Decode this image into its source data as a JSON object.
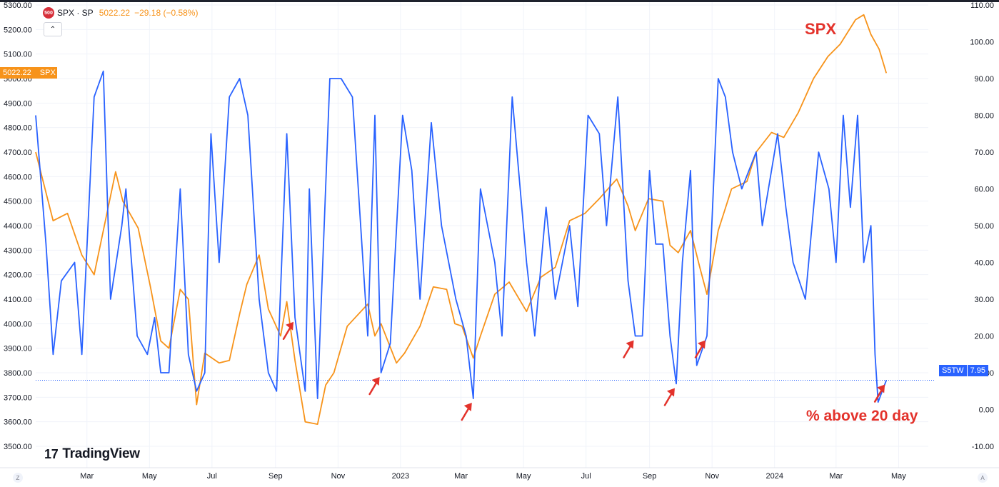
{
  "legend": {
    "logo_text": "500",
    "symbol": "SPX · SP",
    "price": "5022.22",
    "change": "−29.18 (−0.58%)"
  },
  "price_tag": {
    "value": "5022.22",
    "symbol": "SPX"
  },
  "s5tw_tag": {
    "symbol": "S5TW",
    "value": "7.95"
  },
  "annotations": {
    "spx": "SPX",
    "pct": "% above 20 day"
  },
  "branding": {
    "name": "TradingView",
    "mark": "17"
  },
  "corner": {
    "left": "Z",
    "right": "A"
  },
  "colors": {
    "spx": "#f7931a",
    "s5tw": "#2962ff",
    "annotation": "#e3322b",
    "arrow": "#e3322b"
  },
  "chart_data": {
    "type": "line",
    "left_axis": {
      "ylim": [
        3500,
        5300
      ],
      "ticks": [
        "5300.00",
        "5200.00",
        "5100.00",
        "5000.00",
        "4900.00",
        "4800.00",
        "4700.00",
        "4600.00",
        "4500.00",
        "4400.00",
        "4300.00",
        "4200.00",
        "4100.00",
        "4000.00",
        "3900.00",
        "3800.00",
        "3700.00",
        "3600.00",
        "3500.00"
      ]
    },
    "right_axis": {
      "ylim": [
        -10,
        110
      ],
      "ticks": [
        "110.00",
        "100.00",
        "90.00",
        "80.00",
        "70.00",
        "60.00",
        "50.00",
        "40.00",
        "30.00",
        "20.00",
        "10.00",
        "0.00",
        "-10.00"
      ]
    },
    "x_axis": {
      "range": [
        "2022-01-10",
        "2024-05-30"
      ],
      "ticks": [
        {
          "label": "Mar",
          "date": "2022-03-01"
        },
        {
          "label": "May",
          "date": "2022-05-01"
        },
        {
          "label": "Jul",
          "date": "2022-07-01"
        },
        {
          "label": "Sep",
          "date": "2022-09-01"
        },
        {
          "label": "Nov",
          "date": "2022-11-01"
        },
        {
          "label": "2023",
          "date": "2023-01-01"
        },
        {
          "label": "Mar",
          "date": "2023-03-01"
        },
        {
          "label": "May",
          "date": "2023-05-01"
        },
        {
          "label": "Jul",
          "date": "2023-07-01"
        },
        {
          "label": "Sep",
          "date": "2023-09-01"
        },
        {
          "label": "Nov",
          "date": "2023-11-01"
        },
        {
          "label": "2024",
          "date": "2024-01-01"
        },
        {
          "label": "Mar",
          "date": "2024-03-01"
        },
        {
          "label": "May",
          "date": "2024-05-01"
        }
      ]
    },
    "grid": true,
    "series": [
      {
        "name": "SPX",
        "axis": "left",
        "x": [
          "2022-01-10",
          "2022-01-27",
          "2022-02-10",
          "2022-02-24",
          "2022-03-08",
          "2022-03-29",
          "2022-04-05",
          "2022-04-20",
          "2022-05-02",
          "2022-05-12",
          "2022-05-20",
          "2022-05-31",
          "2022-06-08",
          "2022-06-16",
          "2022-06-24",
          "2022-07-08",
          "2022-07-18",
          "2022-07-28",
          "2022-08-04",
          "2022-08-16",
          "2022-08-25",
          "2022-09-06",
          "2022-09-12",
          "2022-09-20",
          "2022-09-30",
          "2022-10-12",
          "2022-10-20",
          "2022-10-28",
          "2022-11-10",
          "2022-11-30",
          "2022-12-07",
          "2022-12-13",
          "2022-12-28",
          "2023-01-05",
          "2023-01-20",
          "2023-02-02",
          "2023-02-15",
          "2023-02-23",
          "2023-03-02",
          "2023-03-13",
          "2023-03-20",
          "2023-04-03",
          "2023-04-17",
          "2023-05-04",
          "2023-05-18",
          "2023-06-01",
          "2023-06-15",
          "2023-06-30",
          "2023-07-14",
          "2023-07-31",
          "2023-08-11",
          "2023-08-18",
          "2023-08-31",
          "2023-09-14",
          "2023-09-21",
          "2023-09-29",
          "2023-10-11",
          "2023-10-20",
          "2023-10-27",
          "2023-11-07",
          "2023-11-20",
          "2023-12-05",
          "2023-12-14",
          "2023-12-29",
          "2024-01-10",
          "2024-01-24",
          "2024-02-08",
          "2024-02-22",
          "2024-03-05",
          "2024-03-20",
          "2024-03-28",
          "2024-04-04",
          "2024-04-12",
          "2024-04-19"
        ],
        "values": [
          4700,
          4420,
          4450,
          4280,
          4200,
          4620,
          4500,
          4390,
          4150,
          3930,
          3900,
          4140,
          4100,
          3670,
          3880,
          3840,
          3850,
          4040,
          4160,
          4280,
          4060,
          3950,
          4090,
          3850,
          3600,
          3590,
          3750,
          3800,
          3990,
          4080,
          3950,
          4000,
          3840,
          3880,
          3990,
          4150,
          4140,
          4000,
          3990,
          3860,
          3950,
          4120,
          4170,
          4050,
          4190,
          4230,
          4420,
          4450,
          4510,
          4590,
          4480,
          4380,
          4510,
          4500,
          4320,
          4290,
          4380,
          4230,
          4120,
          4380,
          4550,
          4580,
          4700,
          4780,
          4760,
          4860,
          5000,
          5090,
          5140,
          5240,
          5260,
          5180,
          5120,
          5022.22
        ]
      },
      {
        "name": "S5TW",
        "axis": "right",
        "x": [
          "2022-01-10",
          "2022-01-20",
          "2022-01-27",
          "2022-02-04",
          "2022-02-17",
          "2022-02-24",
          "2022-03-08",
          "2022-03-17",
          "2022-03-24",
          "2022-04-04",
          "2022-04-08",
          "2022-04-19",
          "2022-04-29",
          "2022-05-06",
          "2022-05-12",
          "2022-05-20",
          "2022-05-31",
          "2022-06-08",
          "2022-06-16",
          "2022-06-24",
          "2022-06-30",
          "2022-07-08",
          "2022-07-18",
          "2022-07-28",
          "2022-08-05",
          "2022-08-16",
          "2022-08-25",
          "2022-09-02",
          "2022-09-12",
          "2022-09-20",
          "2022-09-30",
          "2022-10-04",
          "2022-10-12",
          "2022-10-24",
          "2022-11-04",
          "2022-11-15",
          "2022-11-30",
          "2022-12-07",
          "2022-12-13",
          "2022-12-22",
          "2023-01-03",
          "2023-01-12",
          "2023-01-20",
          "2023-01-31",
          "2023-02-10",
          "2023-02-24",
          "2023-03-06",
          "2023-03-13",
          "2023-03-20",
          "2023-04-03",
          "2023-04-10",
          "2023-04-20",
          "2023-05-04",
          "2023-05-12",
          "2023-05-23",
          "2023-06-01",
          "2023-06-15",
          "2023-06-23",
          "2023-07-03",
          "2023-07-14",
          "2023-07-21",
          "2023-08-01",
          "2023-08-11",
          "2023-08-18",
          "2023-08-25",
          "2023-09-01",
          "2023-09-07",
          "2023-09-14",
          "2023-09-21",
          "2023-09-27",
          "2023-10-03",
          "2023-10-11",
          "2023-10-17",
          "2023-10-27",
          "2023-11-07",
          "2023-11-14",
          "2023-11-21",
          "2023-11-30",
          "2023-12-14",
          "2023-12-20",
          "2024-01-04",
          "2024-01-12",
          "2024-01-19",
          "2024-01-31",
          "2024-02-13",
          "2024-02-23",
          "2024-03-01",
          "2024-03-08",
          "2024-03-15",
          "2024-03-22",
          "2024-03-28",
          "2024-04-04",
          "2024-04-08",
          "2024-04-11",
          "2024-04-19"
        ],
        "values": [
          80,
          45,
          15,
          35,
          40,
          15,
          85,
          92,
          30,
          50,
          60,
          20,
          15,
          25,
          10,
          10,
          60,
          15,
          5,
          10,
          75,
          40,
          85,
          90,
          80,
          30,
          10,
          5,
          75,
          25,
          5,
          60,
          3,
          90,
          90,
          85,
          20,
          80,
          10,
          18,
          80,
          65,
          30,
          78,
          50,
          30,
          20,
          3,
          60,
          40,
          20,
          85,
          40,
          20,
          55,
          30,
          50,
          28,
          80,
          75,
          50,
          85,
          35,
          20,
          20,
          65,
          45,
          45,
          20,
          7,
          40,
          65,
          12,
          20,
          90,
          85,
          70,
          60,
          70,
          50,
          75,
          55,
          40,
          30,
          70,
          60,
          40,
          80,
          55,
          80,
          40,
          50,
          15,
          2,
          7.95
        ]
      }
    ],
    "arrows_at": [
      {
        "x": "2022-09-20",
        "series": "S5TW"
      },
      {
        "x": "2022-12-13",
        "series": "S5TW"
      },
      {
        "x": "2023-03-13",
        "series": "S5TW"
      },
      {
        "x": "2023-08-18",
        "series": "S5TW"
      },
      {
        "x": "2023-09-27",
        "series": "S5TW"
      },
      {
        "x": "2023-10-27",
        "series": "S5TW"
      },
      {
        "x": "2024-04-19",
        "series": "S5TW"
      }
    ],
    "current_line": {
      "series": "S5TW",
      "value": 7.95
    }
  }
}
